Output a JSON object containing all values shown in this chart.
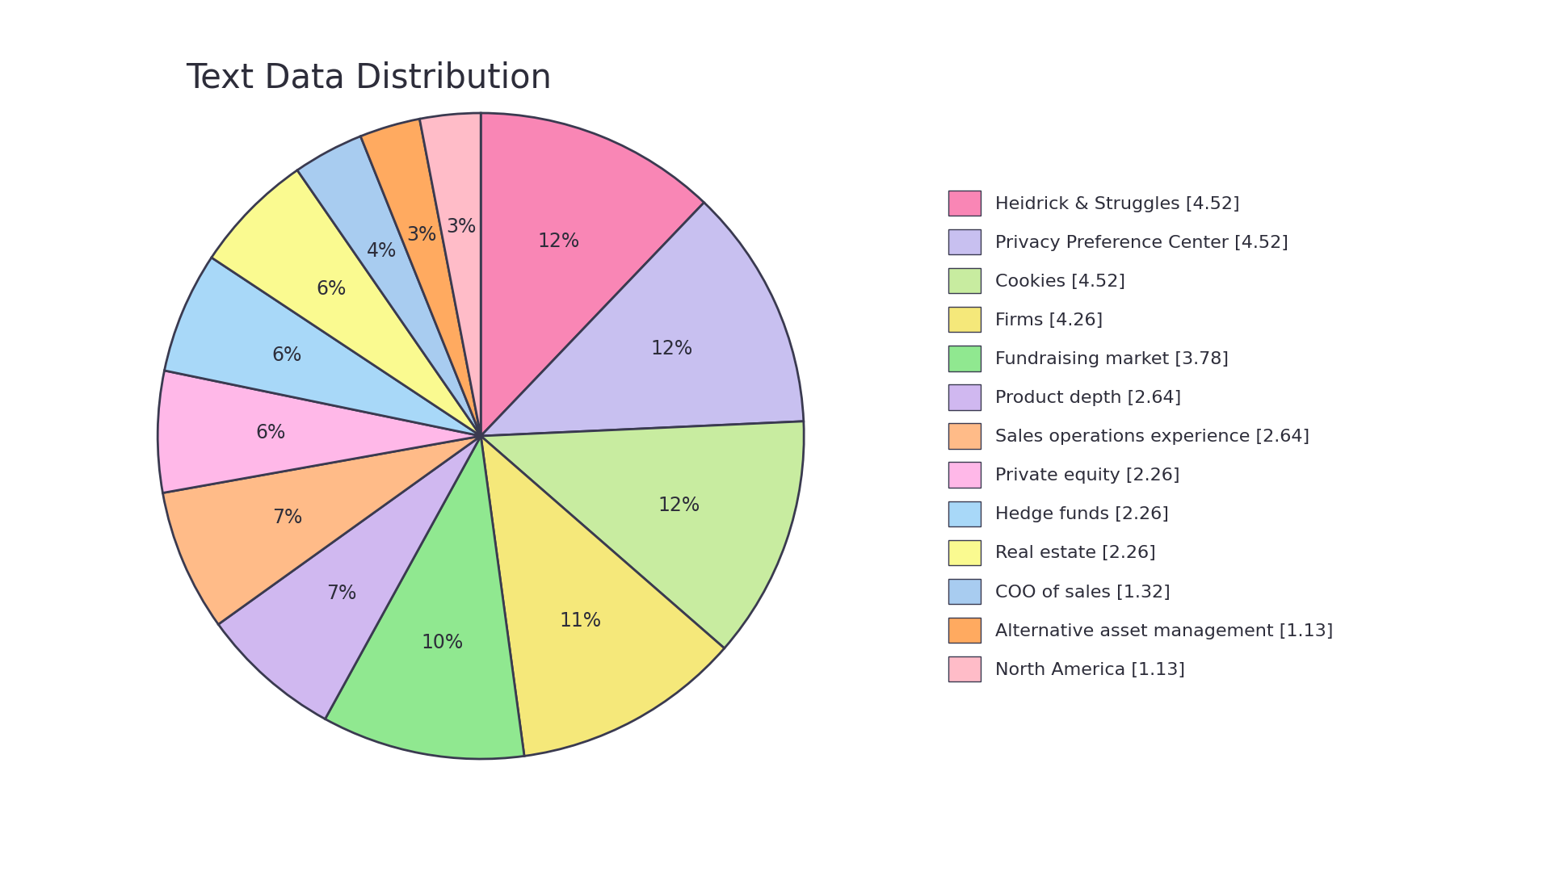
{
  "title": "Text Data Distribution",
  "labels": [
    "Heidrick & Struggles [4.52]",
    "Privacy Preference Center [4.52]",
    "Cookies [4.52]",
    "Firms [4.26]",
    "Fundraising market [3.78]",
    "Product depth [2.64]",
    "Sales operations experience [2.64]",
    "Private equity [2.26]",
    "Hedge funds [2.26]",
    "Real estate [2.26]",
    "COO of sales [1.32]",
    "Alternative asset management [1.13]",
    "North America [1.13]"
  ],
  "values": [
    4.52,
    4.52,
    4.52,
    4.26,
    3.78,
    2.64,
    2.64,
    2.26,
    2.26,
    2.26,
    1.32,
    1.13,
    1.13
  ],
  "colors": [
    "#F986B5",
    "#C8C0F0",
    "#C8ECA0",
    "#F5E87A",
    "#90E890",
    "#D0B8F0",
    "#FFBB88",
    "#FFB8E8",
    "#A8D8F8",
    "#FAFA90",
    "#A8CCF0",
    "#FFAA60",
    "#FFBCC8"
  ],
  "pct_labels": [
    "12%",
    "12%",
    "12%",
    "11%",
    "10%",
    "7%",
    "7%",
    "6%",
    "6%",
    "6%",
    "4%",
    "3%",
    "3%"
  ],
  "background_color": "#FFFFFF",
  "text_color": "#2d2d3a",
  "title_fontsize": 30,
  "label_fontsize": 17,
  "edge_color": "#3a3a50",
  "edge_linewidth": 2.0
}
